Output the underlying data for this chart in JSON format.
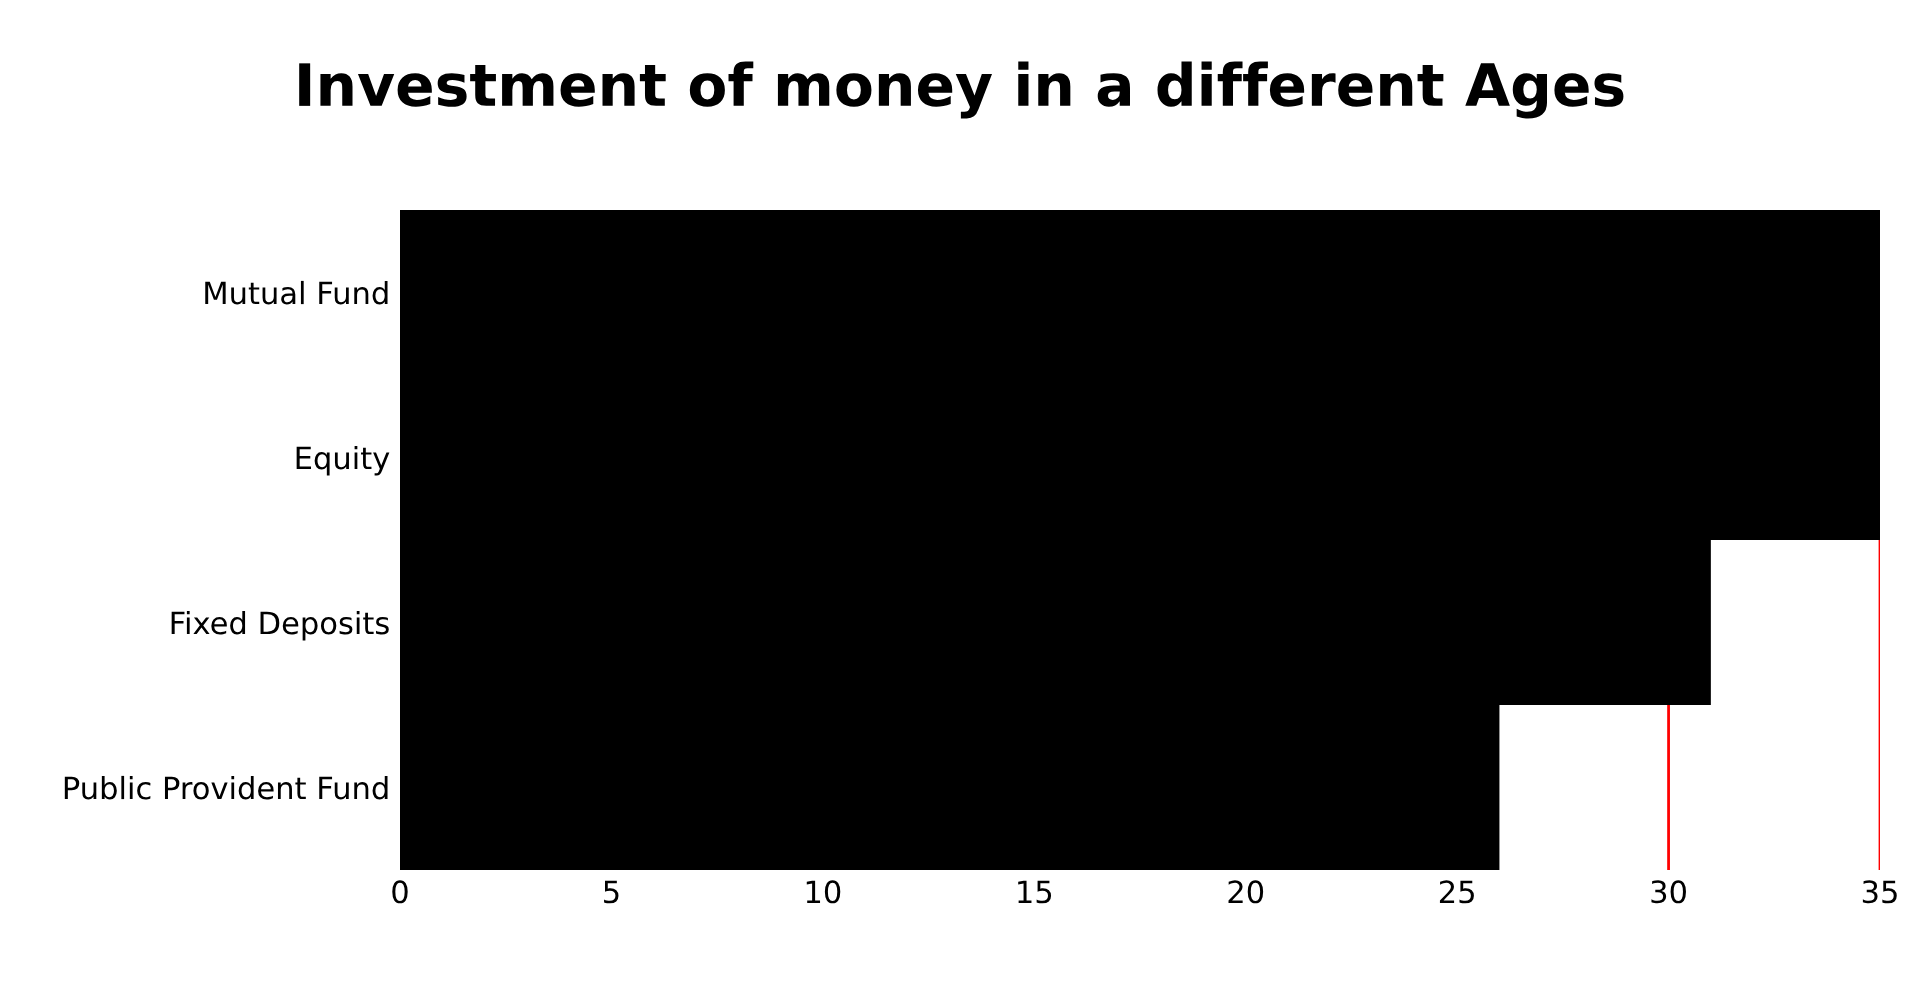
{
  "chart_data": {
    "type": "bar",
    "orientation": "horizontal",
    "title": "Investment of money in a different Ages",
    "categories": [
      "Mutual Fund",
      "Equity",
      "Fixed Deposits",
      "Public Provident Fund"
    ],
    "series": [
      {
        "color": "#000000",
        "values": [
          35,
          35,
          31,
          26
        ]
      }
    ],
    "xlim": [
      0,
      35
    ],
    "xticks": [
      0,
      5,
      10,
      15,
      20,
      25,
      30,
      35
    ],
    "ref_lines": [
      {
        "axis": "x",
        "value": 30,
        "color": "#ff0000"
      },
      {
        "axis": "x",
        "value": 35,
        "color": "#ff0000"
      }
    ],
    "legend": false
  }
}
